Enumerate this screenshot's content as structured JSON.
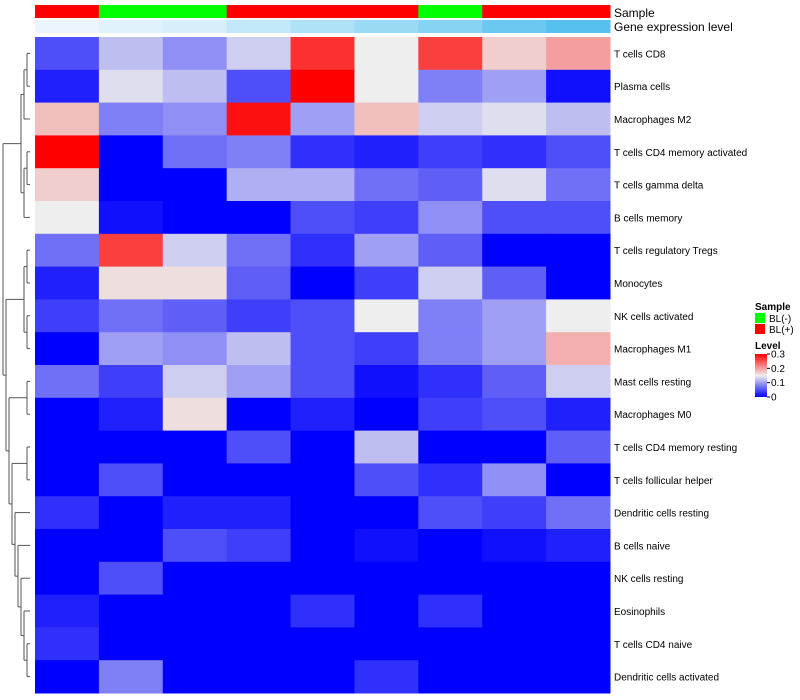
{
  "chart_data": {
    "type": "heatmap",
    "title": "",
    "annotation_tracks": [
      {
        "label": "Sample",
        "values": [
          "BL(+)",
          "BL(-)",
          "BL(-)",
          "BL(+)",
          "BL(+)",
          "BL(+)",
          "BL(-)",
          "BL(+)",
          "BL(+)"
        ]
      },
      {
        "label": "Gene expression level",
        "values": [
          0.0,
          0.02,
          0.04,
          0.08,
          0.12,
          0.16,
          0.2,
          0.26,
          0.3
        ]
      }
    ],
    "rows": [
      "T cells CD8",
      "Plasma cells",
      "Macrophages M2",
      "T cells CD4 memory activated",
      "T cells gamma delta",
      "B cells memory",
      "T cells regulatory  Tregs",
      "Monocytes",
      "NK cells activated",
      "Macrophages M1",
      "Mast cells resting",
      "Macrophages M0",
      "T cells CD4 memory resting",
      "T cells follicular helper",
      "Dendritic cells resting",
      "B cells naive",
      "NK cells resting",
      "Eosinophils",
      "T cells CD4 naive",
      "Dendritic cells activated"
    ],
    "values": [
      [
        0.05,
        0.12,
        0.09,
        0.13,
        0.27,
        0.15,
        0.26,
        0.17,
        0.2
      ],
      [
        0.02,
        0.14,
        0.12,
        0.05,
        0.3,
        0.15,
        0.08,
        0.1,
        0.01
      ],
      [
        0.18,
        0.08,
        0.09,
        0.29,
        0.1,
        0.18,
        0.13,
        0.14,
        0.12
      ],
      [
        0.3,
        0.0,
        0.07,
        0.08,
        0.03,
        0.02,
        0.04,
        0.03,
        0.05
      ],
      [
        0.17,
        0.0,
        0.0,
        0.11,
        0.11,
        0.07,
        0.06,
        0.14,
        0.07
      ],
      [
        0.15,
        0.01,
        0.0,
        0.0,
        0.05,
        0.04,
        0.09,
        0.05,
        0.05
      ],
      [
        0.07,
        0.26,
        0.13,
        0.07,
        0.03,
        0.1,
        0.06,
        0.0,
        0.0
      ],
      [
        0.02,
        0.16,
        0.16,
        0.06,
        0.0,
        0.04,
        0.13,
        0.06,
        0.0
      ],
      [
        0.04,
        0.07,
        0.06,
        0.04,
        0.05,
        0.15,
        0.08,
        0.1,
        0.15
      ],
      [
        0.0,
        0.1,
        0.09,
        0.12,
        0.05,
        0.04,
        0.08,
        0.1,
        0.19
      ],
      [
        0.07,
        0.04,
        0.13,
        0.1,
        0.05,
        0.01,
        0.03,
        0.06,
        0.13
      ],
      [
        0.0,
        0.02,
        0.16,
        0.0,
        0.02,
        0.0,
        0.04,
        0.05,
        0.02
      ],
      [
        0.0,
        0.0,
        0.0,
        0.05,
        0.0,
        0.12,
        0.0,
        0.0,
        0.06
      ],
      [
        0.0,
        0.05,
        0.0,
        0.0,
        0.0,
        0.05,
        0.03,
        0.09,
        0.0
      ],
      [
        0.03,
        0.0,
        0.02,
        0.02,
        0.0,
        0.0,
        0.05,
        0.04,
        0.07
      ],
      [
        0.0,
        0.0,
        0.05,
        0.04,
        0.0,
        0.01,
        0.0,
        0.01,
        0.02
      ],
      [
        0.0,
        0.05,
        0.0,
        0.0,
        0.0,
        0.0,
        0.0,
        0.0,
        0.0
      ],
      [
        0.02,
        0.0,
        0.0,
        0.0,
        0.03,
        0.0,
        0.03,
        0.0,
        0.0
      ],
      [
        0.03,
        0.0,
        0.0,
        0.0,
        0.0,
        0.0,
        0.0,
        0.0,
        0.0
      ],
      [
        0.0,
        0.08,
        0.0,
        0.0,
        0.0,
        0.03,
        0.0,
        0.0,
        0.0
      ]
    ],
    "color_scale": {
      "low": "#0000ff",
      "mid": "#eeeeee",
      "high": "#ff0000",
      "min": 0,
      "mid_value": 0.15,
      "max": 0.3
    },
    "sample_colors": {
      "BL(-)": "#00ff00",
      "BL(+)": "#ff0000"
    },
    "expression_colors": {
      "low": "#eaf6fc",
      "high": "#56c1ef"
    },
    "legend": {
      "sample_title": "Sample",
      "sample_entries": [
        "BL(-)",
        "BL(+)"
      ],
      "level_title": "Level",
      "level_ticks": [
        "0.3",
        "0.2",
        "0.1",
        "0"
      ],
      "level_tick_values": [
        0.3,
        0.2,
        0.1,
        0.0
      ],
      "placement": "right"
    },
    "row_dendrogram": "left"
  }
}
